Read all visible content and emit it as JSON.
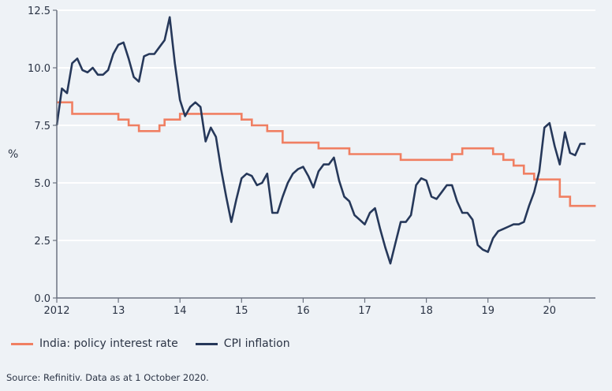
{
  "chart_data": {
    "type": "line",
    "ylabel": "%",
    "ylim": [
      0,
      12.5
    ],
    "yticks": [
      "0.0",
      "2.5",
      "5.0",
      "7.5",
      "10.0",
      "12.5"
    ],
    "xticks": [
      "2012",
      "13",
      "14",
      "15",
      "16",
      "17",
      "18",
      "19",
      "20"
    ],
    "xlim": [
      "2012-01",
      "2020-10"
    ],
    "grid": true,
    "legend_position": "bottom",
    "series": [
      {
        "name": "India: policy interest rate",
        "color": "#f07f62",
        "step": true,
        "points": [
          [
            "2012-01",
            8.5
          ],
          [
            "2012-04",
            8.0
          ],
          [
            "2013-01",
            7.75
          ],
          [
            "2013-03",
            7.5
          ],
          [
            "2013-05",
            7.25
          ],
          [
            "2013-09",
            7.5
          ],
          [
            "2013-10",
            7.75
          ],
          [
            "2014-01",
            8.0
          ],
          [
            "2015-01",
            7.75
          ],
          [
            "2015-03",
            7.5
          ],
          [
            "2015-06",
            7.25
          ],
          [
            "2015-09",
            6.75
          ],
          [
            "2016-04",
            6.5
          ],
          [
            "2016-10",
            6.25
          ],
          [
            "2017-08",
            6.0
          ],
          [
            "2018-06",
            6.25
          ],
          [
            "2018-08",
            6.5
          ],
          [
            "2019-02",
            6.25
          ],
          [
            "2019-04",
            6.0
          ],
          [
            "2019-06",
            5.75
          ],
          [
            "2019-08",
            5.4
          ],
          [
            "2019-10",
            5.15
          ],
          [
            "2020-03",
            4.4
          ],
          [
            "2020-05",
            4.0
          ],
          [
            "2020-10",
            4.0
          ]
        ]
      },
      {
        "name": "CPI inflation",
        "color": "#26385a",
        "start": "2012-01",
        "monthly": [
          7.5,
          9.1,
          8.9,
          10.2,
          10.4,
          9.9,
          9.8,
          10.0,
          9.7,
          9.7,
          9.9,
          10.6,
          11.0,
          11.1,
          10.4,
          9.6,
          9.4,
          10.5,
          10.6,
          10.6,
          10.9,
          11.2,
          12.2,
          10.2,
          8.6,
          7.9,
          8.3,
          8.5,
          8.3,
          6.8,
          7.4,
          7.0,
          5.6,
          4.4,
          3.3,
          4.3,
          5.2,
          5.4,
          5.3,
          4.9,
          5.0,
          5.4,
          3.7,
          3.7,
          4.4,
          5.0,
          5.4,
          5.6,
          5.7,
          5.3,
          4.8,
          5.5,
          5.8,
          5.8,
          6.1,
          5.1,
          4.4,
          4.2,
          3.6,
          3.4,
          3.2,
          3.7,
          3.9,
          3.0,
          2.2,
          1.5,
          2.4,
          3.3,
          3.3,
          3.6,
          4.9,
          5.2,
          5.1,
          4.4,
          4.3,
          4.6,
          4.9,
          4.9,
          4.2,
          3.7,
          3.7,
          3.4,
          2.3,
          2.1,
          2.0,
          2.6,
          2.9,
          3.0,
          3.1,
          3.2,
          3.2,
          3.3,
          4.0,
          4.6,
          5.5,
          7.4,
          7.6,
          6.6,
          5.8,
          7.2,
          6.3,
          6.2,
          6.7,
          6.7
        ]
      }
    ],
    "source": "Source: Refinitiv. Data as at 1 October 2020."
  }
}
